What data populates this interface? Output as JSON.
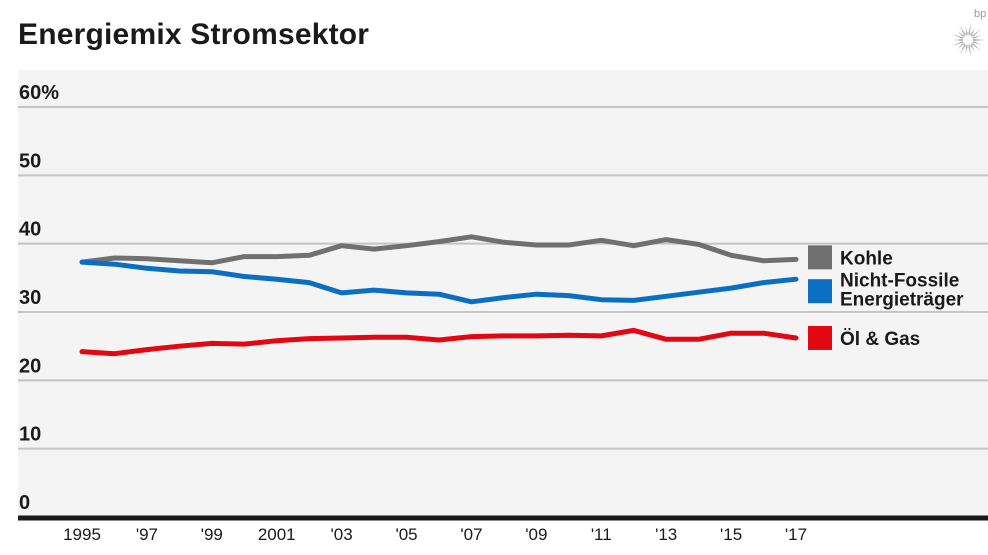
{
  "header": {
    "title": "Energiemix Stromsektor",
    "logo_text": "bp",
    "logo_icon": "bp-helios-icon"
  },
  "chart_data": {
    "type": "line",
    "title": "Energiemix Stromsektor",
    "xlabel": "",
    "ylabel": "",
    "unit": "%",
    "x": [
      1995,
      1996,
      1997,
      1998,
      1999,
      2000,
      2001,
      2002,
      2003,
      2004,
      2005,
      2006,
      2007,
      2008,
      2009,
      2010,
      2011,
      2012,
      2013,
      2014,
      2015,
      2016,
      2017
    ],
    "xlim": [
      1995,
      2017
    ],
    "ylim": [
      0,
      60
    ],
    "grid": true,
    "legend_position": "right",
    "y_ticks": [
      {
        "value": 60,
        "label": "60%"
      },
      {
        "value": 50,
        "label": "50"
      },
      {
        "value": 40,
        "label": "40"
      },
      {
        "value": 30,
        "label": "30"
      },
      {
        "value": 20,
        "label": "20"
      },
      {
        "value": 10,
        "label": "10"
      },
      {
        "value": 0,
        "label": "0"
      }
    ],
    "x_ticks": [
      {
        "value": 1995,
        "label": "1995"
      },
      {
        "value": 1997,
        "label": "'97"
      },
      {
        "value": 1999,
        "label": "'99"
      },
      {
        "value": 2001,
        "label": "2001"
      },
      {
        "value": 2003,
        "label": "'03"
      },
      {
        "value": 2005,
        "label": "'05"
      },
      {
        "value": 2007,
        "label": "'07"
      },
      {
        "value": 2009,
        "label": "'09"
      },
      {
        "value": 2011,
        "label": "'11"
      },
      {
        "value": 2013,
        "label": "'13"
      },
      {
        "value": 2015,
        "label": "'15"
      },
      {
        "value": 2017,
        "label": "'17"
      }
    ],
    "series": [
      {
        "name": "Kohle",
        "legend_lines": [
          "Kohle"
        ],
        "color": "#707070",
        "values": [
          37.3,
          37.9,
          37.8,
          37.5,
          37.2,
          38.1,
          38.1,
          38.3,
          39.7,
          39.2,
          39.7,
          40.3,
          41.0,
          40.2,
          39.8,
          39.8,
          40.5,
          39.7,
          40.6,
          39.9,
          38.3,
          37.5,
          37.7
        ]
      },
      {
        "name": "Nicht-Fossile Energieträger",
        "legend_lines": [
          "Nicht-Fossile",
          "Energieträger"
        ],
        "color": "#0a6fc2",
        "values": [
          37.3,
          37.0,
          36.4,
          36.0,
          35.9,
          35.2,
          34.8,
          34.3,
          32.8,
          33.2,
          32.8,
          32.6,
          31.5,
          32.1,
          32.6,
          32.4,
          31.8,
          31.7,
          32.3,
          32.9,
          33.5,
          34.3,
          34.8
        ]
      },
      {
        "name": "Öl & Gas",
        "legend_lines": [
          "Öl & Gas"
        ],
        "color": "#e30613",
        "values": [
          24.2,
          23.9,
          24.5,
          25.0,
          25.4,
          25.3,
          25.8,
          26.1,
          26.2,
          26.3,
          26.3,
          25.9,
          26.4,
          26.5,
          26.5,
          26.6,
          26.5,
          27.3,
          26.0,
          26.0,
          26.9,
          26.9,
          26.2
        ]
      }
    ]
  }
}
